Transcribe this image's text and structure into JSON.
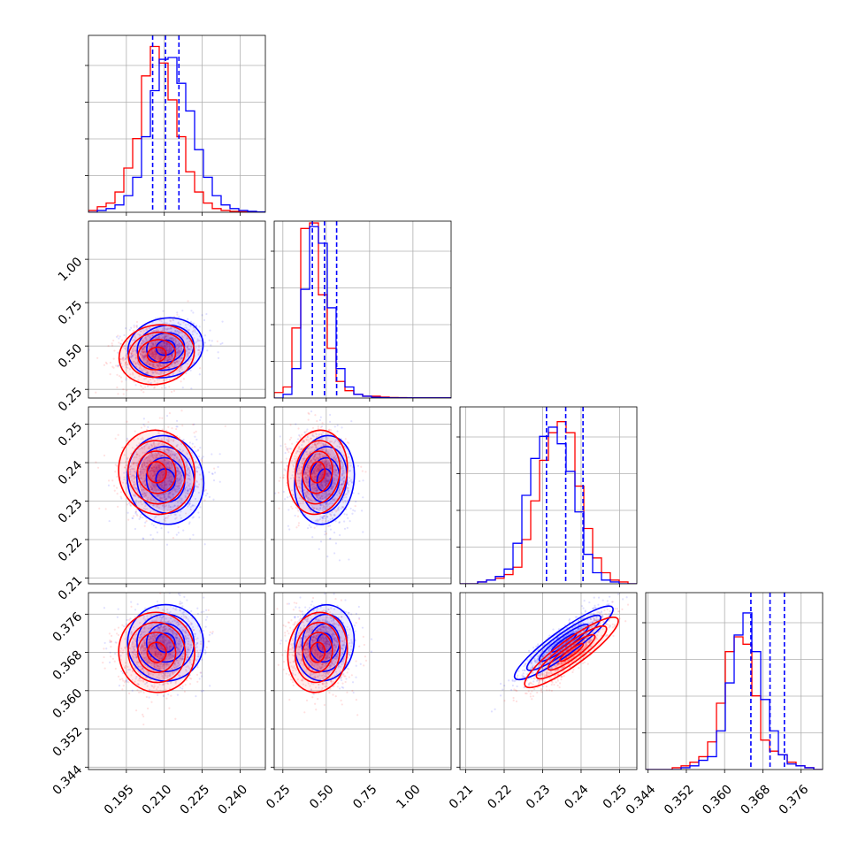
{
  "chart_data": {
    "type": "corner",
    "parameters": 4,
    "colors": {
      "series_a": "#0000ff",
      "series_b": "#ff0000"
    },
    "grid": true,
    "quantile_lines": {
      "color": "#0000ff",
      "style": "dashed"
    },
    "axes": [
      {
        "range": [
          0.18,
          0.25
        ],
        "ticks": [
          {
            "v": 0.195,
            "label": "0.195"
          },
          {
            "v": 0.21,
            "label": "0.210"
          },
          {
            "v": 0.225,
            "label": "0.225"
          },
          {
            "v": 0.24,
            "label": "0.240"
          }
        ]
      },
      {
        "range": [
          0.2,
          1.22
        ],
        "ticks": [
          {
            "v": 0.25,
            "label": "0.25"
          },
          {
            "v": 0.5,
            "label": "0.50"
          },
          {
            "v": 0.75,
            "label": "0.75"
          },
          {
            "v": 1.0,
            "label": "1.00"
          }
        ]
      },
      {
        "range": [
          0.2085,
          0.2545
        ],
        "ticks": [
          {
            "v": 0.21,
            "label": "0.21"
          },
          {
            "v": 0.22,
            "label": "0.22"
          },
          {
            "v": 0.23,
            "label": "0.23"
          },
          {
            "v": 0.24,
            "label": "0.24"
          },
          {
            "v": 0.25,
            "label": "0.25"
          }
        ]
      },
      {
        "range": [
          0.3435,
          0.3805
        ],
        "ticks": [
          {
            "v": 0.344,
            "label": "0.344"
          },
          {
            "v": 0.352,
            "label": "0.352"
          },
          {
            "v": 0.36,
            "label": "0.360"
          },
          {
            "v": 0.368,
            "label": "0.368"
          },
          {
            "v": 0.376,
            "label": "0.376"
          }
        ]
      }
    ],
    "histograms": [
      {
        "param": 0,
        "bin_start": 0.18,
        "bin_width": 0.0035,
        "counts": {
          "red": [
            0.01,
            0.03,
            0.05,
            0.11,
            0.24,
            0.4,
            0.74,
            0.9,
            0.81,
            0.61,
            0.41,
            0.22,
            0.11,
            0.05,
            0.02,
            0.01,
            0.005,
            0.003,
            0.002,
            0.001
          ],
          "blue": [
            0.0,
            0.01,
            0.02,
            0.04,
            0.09,
            0.19,
            0.41,
            0.66,
            0.83,
            0.84,
            0.7,
            0.55,
            0.34,
            0.19,
            0.09,
            0.04,
            0.02,
            0.01,
            0.005,
            0.002
          ]
        },
        "quantiles": [
          0.2054,
          0.2105,
          0.2158
        ]
      },
      {
        "param": 1,
        "bin_start": 0.2,
        "bin_width": 0.051,
        "counts": {
          "red": [
            0.03,
            0.06,
            0.38,
            0.92,
            0.95,
            0.56,
            0.27,
            0.09,
            0.04,
            0.02,
            0.01,
            0.01,
            0.005,
            0.003,
            0.002,
            0.001,
            0.001,
            0.001,
            0.001,
            0.001
          ],
          "blue": [
            0.0,
            0.02,
            0.16,
            0.59,
            0.93,
            0.84,
            0.49,
            0.16,
            0.06,
            0.02,
            0.01,
            0.004,
            0.002,
            0.001,
            0.001,
            0.001,
            0.001,
            0.001,
            0.001,
            0.001
          ]
        },
        "quantiles": [
          0.42,
          0.49,
          0.56
        ]
      },
      {
        "param": 2,
        "bin_start": 0.2085,
        "bin_width": 0.0023,
        "counts": {
          "red": [
            0.0,
            0.0,
            0.01,
            0.02,
            0.03,
            0.05,
            0.09,
            0.24,
            0.45,
            0.67,
            0.82,
            0.88,
            0.82,
            0.53,
            0.3,
            0.14,
            0.06,
            0.02,
            0.01,
            0.0
          ],
          "blue": [
            0.0,
            0.0,
            0.01,
            0.02,
            0.04,
            0.08,
            0.22,
            0.48,
            0.68,
            0.8,
            0.85,
            0.76,
            0.61,
            0.39,
            0.16,
            0.06,
            0.02,
            0.01,
            0.0,
            0.0
          ]
        },
        "quantiles": [
          0.231,
          0.236,
          0.2405
        ]
      },
      {
        "param": 3,
        "bin_start": 0.3435,
        "bin_width": 0.00185,
        "counts": {
          "red": [
            0.0,
            0.0,
            0.0,
            0.01,
            0.02,
            0.04,
            0.07,
            0.15,
            0.36,
            0.64,
            0.72,
            0.68,
            0.4,
            0.16,
            0.1,
            0.08,
            0.04,
            0.02,
            0.01,
            0.0
          ],
          "blue": [
            0.0,
            0.0,
            0.0,
            0.0,
            0.01,
            0.02,
            0.05,
            0.07,
            0.21,
            0.47,
            0.73,
            0.85,
            0.64,
            0.38,
            0.21,
            0.08,
            0.03,
            0.02,
            0.01,
            0.0
          ]
        },
        "quantiles": [
          0.3655,
          0.3695,
          0.3725
        ]
      }
    ],
    "distributions": {
      "blue": {
        "mean": [
          0.2105,
          0.49,
          0.2355,
          0.37
        ],
        "sd": [
          0.0075,
          0.085,
          0.0058,
          0.004
        ]
      },
      "red": {
        "mean": [
          0.207,
          0.45,
          0.2375,
          0.368
        ],
        "sd": [
          0.0075,
          0.085,
          0.0055,
          0.0042
        ]
      },
      "correlation": [
        [
          1.0,
          0.15,
          0.0,
          0.1
        ],
        [
          0.15,
          1.0,
          -0.1,
          -0.1
        ],
        [
          0.0,
          -0.1,
          1.0,
          0.9
        ],
        [
          0.1,
          -0.1,
          0.9,
          1.0
        ]
      ]
    }
  }
}
